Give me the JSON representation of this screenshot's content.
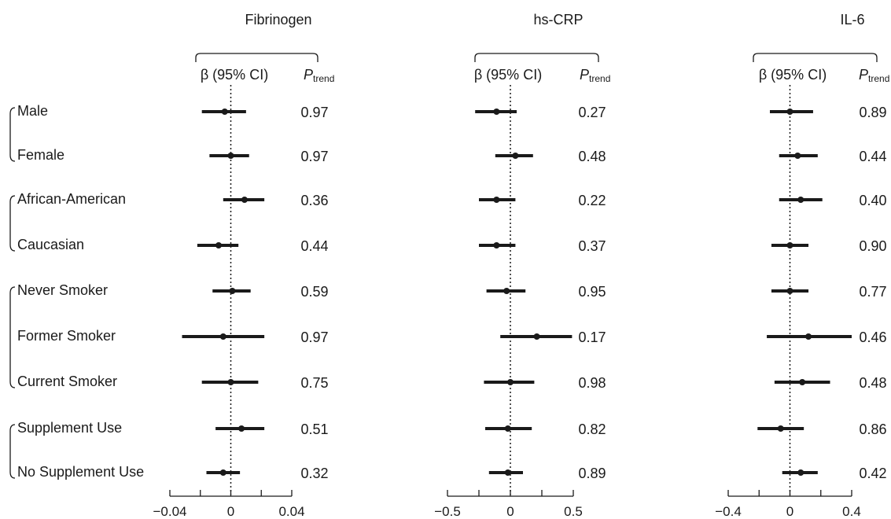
{
  "chart_data": {
    "type": "forest",
    "row_labels": [
      "Male",
      "Female",
      "African-American",
      "Caucasian",
      "Never Smoker",
      "Former Smoker",
      "Current Smoker",
      "Supplement Use",
      "No Supplement Use"
    ],
    "row_groups": [
      [
        0,
        1
      ],
      [
        2,
        3
      ],
      [
        4,
        5,
        6
      ],
      [
        7,
        8
      ]
    ],
    "header": {
      "beta_label": "β (95% CI)",
      "p_label": "P",
      "p_subscript": "trend"
    },
    "panels": [
      {
        "title": "Fibrinogen",
        "xlim": [
          -0.04,
          0.04
        ],
        "ticks": [
          -0.04,
          -0.02,
          0,
          0.02,
          0.04
        ],
        "tick_labels": [
          "−0.04",
          "",
          "0",
          "",
          "0.04"
        ],
        "estimates": [
          -0.004,
          0.0,
          0.009,
          -0.008,
          0.001,
          -0.005,
          0.0,
          0.007,
          -0.005
        ],
        "ci_low": [
          -0.019,
          -0.014,
          -0.005,
          -0.022,
          -0.012,
          -0.032,
          -0.019,
          -0.01,
          -0.016
        ],
        "ci_high": [
          0.01,
          0.012,
          0.022,
          0.005,
          0.013,
          0.022,
          0.018,
          0.022,
          0.006
        ],
        "p_trend": [
          "0.97",
          "0.97",
          "0.36",
          "0.44",
          "0.59",
          "0.97",
          "0.75",
          "0.51",
          "0.32"
        ]
      },
      {
        "title": "hs-CRP",
        "xlim": [
          -0.5,
          0.5
        ],
        "ticks": [
          -0.5,
          -0.25,
          0,
          0.25,
          0.5
        ],
        "tick_labels": [
          "−0.5",
          "",
          "0",
          "",
          "0.5"
        ],
        "estimates": [
          -0.11,
          0.04,
          -0.11,
          -0.11,
          -0.03,
          0.21,
          0.0,
          -0.02,
          -0.02
        ],
        "ci_low": [
          -0.28,
          -0.12,
          -0.25,
          -0.25,
          -0.19,
          -0.08,
          -0.21,
          -0.2,
          -0.17
        ],
        "ci_high": [
          0.05,
          0.18,
          0.04,
          0.04,
          0.12,
          0.49,
          0.19,
          0.17,
          0.1
        ],
        "p_trend": [
          "0.27",
          "0.48",
          "0.22",
          "0.37",
          "0.95",
          "0.17",
          "0.98",
          "0.82",
          "0.89"
        ]
      },
      {
        "title": "IL-6",
        "xlim": [
          -0.4,
          0.4
        ],
        "ticks": [
          -0.4,
          -0.2,
          0,
          0.2,
          0.4
        ],
        "tick_labels": [
          "−0.4",
          "",
          "0",
          "",
          "0.4"
        ],
        "estimates": [
          0.0,
          0.05,
          0.07,
          0.0,
          0.0,
          0.12,
          0.08,
          -0.06,
          0.07
        ],
        "ci_low": [
          -0.13,
          -0.07,
          -0.07,
          -0.12,
          -0.12,
          -0.15,
          -0.1,
          -0.21,
          -0.05
        ],
        "ci_high": [
          0.15,
          0.18,
          0.21,
          0.12,
          0.12,
          0.4,
          0.26,
          0.09,
          0.18
        ],
        "p_trend": [
          "0.89",
          "0.44",
          "0.40",
          "0.90",
          "0.77",
          "0.46",
          "0.48",
          "0.86",
          "0.42"
        ]
      }
    ]
  }
}
